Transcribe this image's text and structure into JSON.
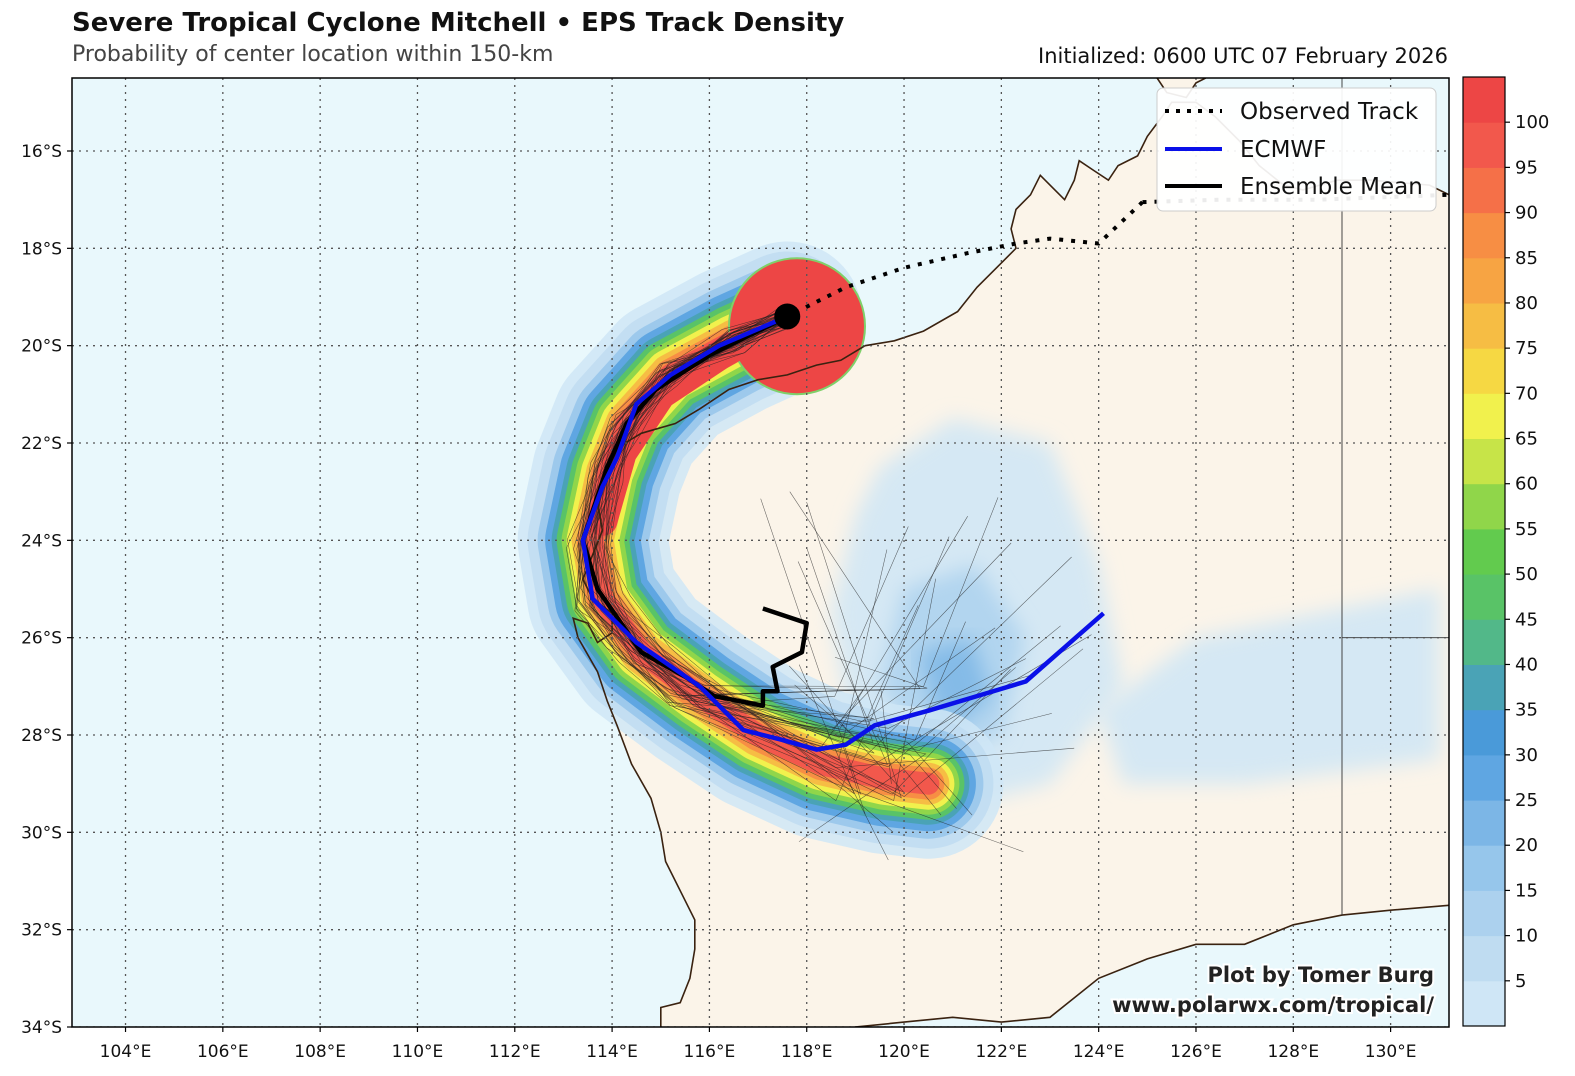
{
  "header": {
    "title": "Severe Tropical Cyclone Mitchell • EPS Track Density",
    "subtitle": "Probability of center location within 150-km",
    "initialized": "Initialized: 0600 UTC 07 February 2026"
  },
  "map": {
    "lon_range": [
      102.9,
      131.2
    ],
    "lat_range": [
      -34.0,
      -14.5
    ],
    "lon_ticks": [
      "104°E",
      "106°E",
      "108°E",
      "110°E",
      "112°E",
      "114°E",
      "116°E",
      "118°E",
      "120°E",
      "122°E",
      "124°E",
      "126°E",
      "128°E",
      "130°E"
    ],
    "lon_tick_values": [
      104,
      106,
      108,
      110,
      112,
      114,
      116,
      118,
      120,
      122,
      124,
      126,
      128,
      130
    ],
    "lat_ticks": [
      "16°S",
      "18°S",
      "20°S",
      "22°S",
      "24°S",
      "26°S",
      "28°S",
      "30°S",
      "32°S",
      "34°S"
    ],
    "lat_tick_values": [
      -16,
      -18,
      -20,
      -22,
      -24,
      -26,
      -28,
      -30,
      -32,
      -34
    ],
    "colors": {
      "ocean": "#e9f8fc",
      "land": "#fbf4e9",
      "coast": "#3a2210",
      "grid": "#555555"
    }
  },
  "legend": {
    "items": [
      {
        "label": "Observed Track",
        "style": "dotted",
        "color": "#000000"
      },
      {
        "label": "ECMWF",
        "style": "solid",
        "color": "#0a10e8"
      },
      {
        "label": "Ensemble Mean",
        "style": "solid",
        "color": "#000000"
      }
    ]
  },
  "colorbar": {
    "ticks": [
      "5",
      "10",
      "15",
      "20",
      "25",
      "30",
      "35",
      "40",
      "45",
      "50",
      "55",
      "60",
      "65",
      "70",
      "75",
      "80",
      "85",
      "90",
      "95",
      "100"
    ],
    "colors": [
      "#cfe6f6",
      "#bfdcf1",
      "#acd1ee",
      "#96c6eb",
      "#7cb6e6",
      "#5fa6e2",
      "#4a9ad9",
      "#4aa3b6",
      "#52b889",
      "#59c367",
      "#62cb4e",
      "#90d64a",
      "#c7e448",
      "#f1f14d",
      "#f6d843",
      "#f6bd44",
      "#f7a443",
      "#f78e44",
      "#f57048",
      "#f2584c",
      "#ed4645"
    ]
  },
  "tracks": {
    "observed": [
      [
        124.9,
        -17.05
      ],
      [
        124.0,
        -17.9
      ],
      [
        123.0,
        -17.8
      ],
      [
        122.3,
        -17.9
      ],
      [
        121.3,
        -18.1
      ],
      [
        120.0,
        -18.4
      ],
      [
        118.8,
        -18.8
      ],
      [
        117.6,
        -19.4
      ]
    ],
    "ecmwf": [
      [
        117.6,
        -19.4
      ],
      [
        116.2,
        -20.0
      ],
      [
        115.2,
        -20.6
      ],
      [
        114.5,
        -21.2
      ],
      [
        114.1,
        -22.3
      ],
      [
        113.8,
        -22.9
      ],
      [
        113.4,
        -24.0
      ],
      [
        113.6,
        -25.2
      ],
      [
        114.5,
        -26.1
      ],
      [
        115.8,
        -27.0
      ],
      [
        116.7,
        -27.9
      ],
      [
        117.5,
        -28.1
      ],
      [
        118.2,
        -28.3
      ],
      [
        118.8,
        -28.2
      ],
      [
        119.4,
        -27.8
      ],
      [
        120.5,
        -27.5
      ],
      [
        121.5,
        -27.2
      ],
      [
        122.5,
        -26.9
      ],
      [
        123.3,
        -26.2
      ],
      [
        124.1,
        -25.5
      ]
    ],
    "ensemble_mean": [
      [
        117.6,
        -19.4
      ],
      [
        116.0,
        -20.2
      ],
      [
        114.9,
        -20.9
      ],
      [
        114.3,
        -21.6
      ],
      [
        113.9,
        -22.5
      ],
      [
        113.4,
        -24.0
      ],
      [
        113.7,
        -25.0
      ],
      [
        114.6,
        -26.3
      ],
      [
        115.5,
        -26.8
      ],
      [
        116.1,
        -27.2
      ],
      [
        117.1,
        -27.4
      ],
      [
        117.1,
        -27.1
      ],
      [
        117.4,
        -27.1
      ],
      [
        117.3,
        -26.6
      ],
      [
        117.9,
        -26.3
      ],
      [
        118.0,
        -25.7
      ],
      [
        117.1,
        -25.4
      ]
    ],
    "current_position": [
      117.6,
      -19.4
    ]
  },
  "credits": {
    "line1": "Plot by Tomer Burg",
    "line2": "www.polarwx.com/tropical/"
  }
}
